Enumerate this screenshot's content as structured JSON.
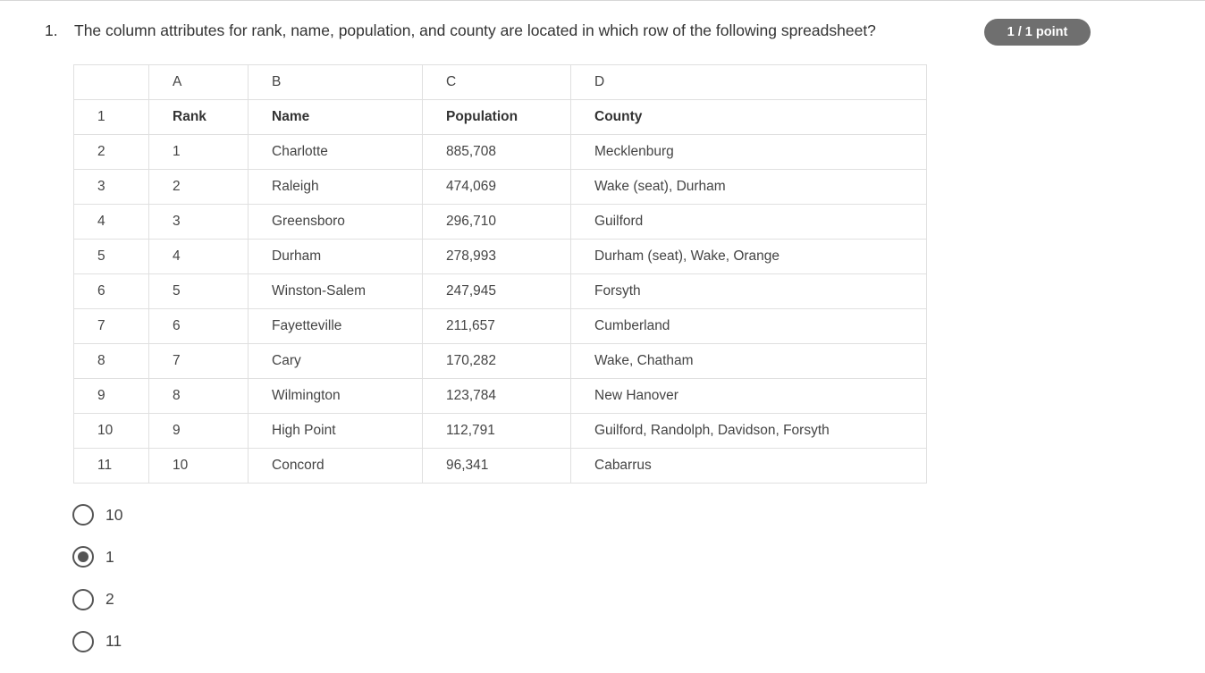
{
  "question": {
    "number": "1.",
    "text": "The column attributes for rank, name, population, and county are located in which row of the following spreadsheet?"
  },
  "score_badge": "1 / 1 point",
  "spreadsheet": {
    "column_letters": [
      "",
      "A",
      "B",
      "C",
      "D"
    ],
    "rows": [
      [
        "1",
        "Rank",
        "Name",
        "Population",
        "County"
      ],
      [
        "2",
        "1",
        "Charlotte",
        "885,708",
        "Mecklenburg"
      ],
      [
        "3",
        "2",
        "Raleigh",
        "474,069",
        "Wake (seat), Durham"
      ],
      [
        "4",
        "3",
        "Greensboro",
        "296,710",
        "Guilford"
      ],
      [
        "5",
        "4",
        "Durham",
        "278,993",
        "Durham (seat), Wake, Orange"
      ],
      [
        "6",
        "5",
        "Winston-Salem",
        "247,945",
        "Forsyth"
      ],
      [
        "7",
        "6",
        "Fayetteville",
        "211,657",
        "Cumberland"
      ],
      [
        "8",
        "7",
        "Cary",
        "170,282",
        "Wake, Chatham"
      ],
      [
        "9",
        "8",
        "Wilmington",
        "123,784",
        "New Hanover"
      ],
      [
        "10",
        "9",
        "High Point",
        "112,791",
        "Guilford, Randolph, Davidson, Forsyth"
      ],
      [
        "11",
        "10",
        "Concord",
        "96,341",
        "Cabarrus"
      ]
    ]
  },
  "options": [
    {
      "label": "10",
      "selected": false
    },
    {
      "label": "1",
      "selected": true
    },
    {
      "label": "2",
      "selected": false
    },
    {
      "label": "11",
      "selected": false
    }
  ]
}
